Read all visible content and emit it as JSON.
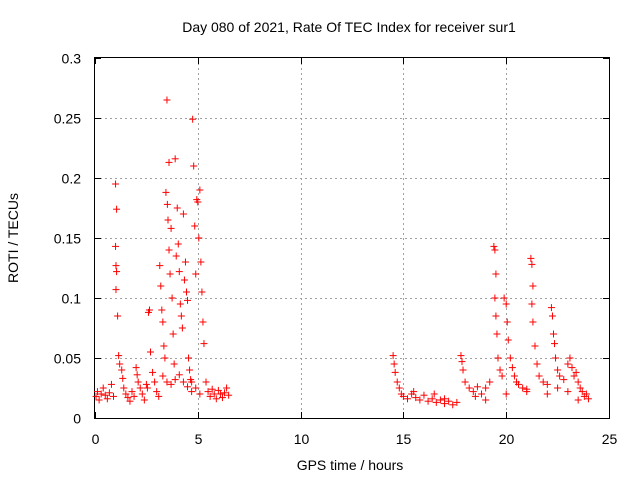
{
  "chart_data": {
    "type": "scatter",
    "title": "Day 080 of 2021, Rate Of TEC Index for receiver sur1",
    "xlabel": "GPS time / hours",
    "ylabel": "ROTI / TECUs",
    "xlim": [
      0,
      25
    ],
    "ylim": [
      0,
      0.3
    ],
    "x_ticks": [
      "0",
      "5",
      "10",
      "15",
      "20",
      "25"
    ],
    "y_ticks": [
      "0",
      "0.05",
      "0.1",
      "0.15",
      "0.2",
      "0.25",
      "0.3"
    ],
    "grid": true,
    "legend": "none",
    "marker": "+",
    "color": "#ff0000",
    "series": [
      {
        "points": [
          [
            0.05,
            0.018
          ],
          [
            0.12,
            0.022
          ],
          [
            0.2,
            0.015
          ],
          [
            0.3,
            0.02
          ],
          [
            0.4,
            0.025
          ],
          [
            0.5,
            0.019
          ],
          [
            0.6,
            0.016
          ],
          [
            0.7,
            0.021
          ],
          [
            0.8,
            0.028
          ],
          [
            0.9,
            0.018
          ],
          [
            1.0,
            0.195
          ],
          [
            1.05,
            0.174
          ],
          [
            1.0,
            0.143
          ],
          [
            1.02,
            0.127
          ],
          [
            1.05,
            0.122
          ],
          [
            1.02,
            0.107
          ],
          [
            1.1,
            0.085
          ],
          [
            1.15,
            0.052
          ],
          [
            1.2,
            0.045
          ],
          [
            1.3,
            0.04
          ],
          [
            1.35,
            0.033
          ],
          [
            1.4,
            0.025
          ],
          [
            1.5,
            0.02
          ],
          [
            1.6,
            0.017
          ],
          [
            1.7,
            0.014
          ],
          [
            1.8,
            0.022
          ],
          [
            1.9,
            0.018
          ],
          [
            2.0,
            0.042
          ],
          [
            2.05,
            0.036
          ],
          [
            2.1,
            0.03
          ],
          [
            2.2,
            0.025
          ],
          [
            2.3,
            0.02
          ],
          [
            2.4,
            0.015
          ],
          [
            2.5,
            0.028
          ],
          [
            2.55,
            0.025
          ],
          [
            2.6,
            0.088
          ],
          [
            2.65,
            0.09
          ],
          [
            2.7,
            0.055
          ],
          [
            2.8,
            0.038
          ],
          [
            2.9,
            0.03
          ],
          [
            3.0,
            0.022
          ],
          [
            3.1,
            0.018
          ],
          [
            3.15,
            0.127
          ],
          [
            3.2,
            0.11
          ],
          [
            3.25,
            0.09
          ],
          [
            3.3,
            0.08
          ],
          [
            3.35,
            0.06
          ],
          [
            3.4,
            0.05
          ],
          [
            3.45,
            0.188
          ],
          [
            3.5,
            0.265
          ],
          [
            3.52,
            0.178
          ],
          [
            3.55,
            0.165
          ],
          [
            3.6,
            0.213
          ],
          [
            3.6,
            0.14
          ],
          [
            3.65,
            0.12
          ],
          [
            3.7,
            0.158
          ],
          [
            3.75,
            0.1
          ],
          [
            3.8,
            0.07
          ],
          [
            3.85,
            0.045
          ],
          [
            3.9,
            0.216
          ],
          [
            3.95,
            0.135
          ],
          [
            4.0,
            0.175
          ],
          [
            4.05,
            0.145
          ],
          [
            4.1,
            0.122
          ],
          [
            4.15,
            0.095
          ],
          [
            4.2,
            0.085
          ],
          [
            4.25,
            0.075
          ],
          [
            4.3,
            0.17
          ],
          [
            4.35,
            0.115
          ],
          [
            4.4,
            0.13
          ],
          [
            4.45,
            0.105
          ],
          [
            4.5,
            0.098
          ],
          [
            4.55,
            0.05
          ],
          [
            4.6,
            0.04
          ],
          [
            4.65,
            0.032
          ],
          [
            4.7,
            0.03
          ],
          [
            4.75,
            0.249
          ],
          [
            4.8,
            0.21
          ],
          [
            4.85,
            0.16
          ],
          [
            4.9,
            0.12
          ],
          [
            4.95,
            0.182
          ],
          [
            5.0,
            0.18
          ],
          [
            5.05,
            0.15
          ],
          [
            5.1,
            0.19
          ],
          [
            5.15,
            0.13
          ],
          [
            5.2,
            0.105
          ],
          [
            5.25,
            0.08
          ],
          [
            5.3,
            0.062
          ],
          [
            5.4,
            0.03
          ],
          [
            5.5,
            0.022
          ],
          [
            5.6,
            0.018
          ],
          [
            5.7,
            0.024
          ],
          [
            5.8,
            0.02
          ],
          [
            5.9,
            0.016
          ],
          [
            6.0,
            0.023
          ],
          [
            6.1,
            0.02
          ],
          [
            6.2,
            0.017
          ],
          [
            6.3,
            0.021
          ],
          [
            6.4,
            0.025
          ],
          [
            6.5,
            0.019
          ],
          [
            3.3,
            0.035
          ],
          [
            3.5,
            0.03
          ],
          [
            3.7,
            0.028
          ],
          [
            3.9,
            0.032
          ],
          [
            4.1,
            0.036
          ],
          [
            4.3,
            0.03
          ],
          [
            4.5,
            0.026
          ],
          [
            4.7,
            0.022
          ],
          [
            4.9,
            0.025
          ],
          [
            5.1,
            0.02
          ],
          [
            14.5,
            0.052
          ],
          [
            14.55,
            0.045
          ],
          [
            14.6,
            0.038
          ],
          [
            14.7,
            0.03
          ],
          [
            14.8,
            0.025
          ],
          [
            14.9,
            0.02
          ],
          [
            15.0,
            0.018
          ],
          [
            15.2,
            0.016
          ],
          [
            15.4,
            0.02
          ],
          [
            15.6,
            0.017
          ],
          [
            15.8,
            0.015
          ],
          [
            16.0,
            0.019
          ],
          [
            16.2,
            0.014
          ],
          [
            16.4,
            0.016
          ],
          [
            16.6,
            0.013
          ],
          [
            16.8,
            0.015
          ],
          [
            17.0,
            0.012
          ],
          [
            17.2,
            0.014
          ],
          [
            17.4,
            0.011
          ],
          [
            17.6,
            0.013
          ],
          [
            17.8,
            0.052
          ],
          [
            17.85,
            0.047
          ],
          [
            17.9,
            0.04
          ],
          [
            18.0,
            0.03
          ],
          [
            18.2,
            0.025
          ],
          [
            18.4,
            0.022
          ],
          [
            18.6,
            0.026
          ],
          [
            18.8,
            0.02
          ],
          [
            19.0,
            0.025
          ],
          [
            19.2,
            0.03
          ],
          [
            19.4,
            0.143
          ],
          [
            19.45,
            0.14
          ],
          [
            19.5,
            0.12
          ],
          [
            19.45,
            0.1
          ],
          [
            19.5,
            0.085
          ],
          [
            19.55,
            0.07
          ],
          [
            19.6,
            0.05
          ],
          [
            19.7,
            0.04
          ],
          [
            19.8,
            0.035
          ],
          [
            19.9,
            0.1
          ],
          [
            20.0,
            0.095
          ],
          [
            20.05,
            0.08
          ],
          [
            20.1,
            0.065
          ],
          [
            20.2,
            0.05
          ],
          [
            20.3,
            0.042
          ],
          [
            20.4,
            0.035
          ],
          [
            20.5,
            0.03
          ],
          [
            20.6,
            0.028
          ],
          [
            20.8,
            0.025
          ],
          [
            21.0,
            0.022
          ],
          [
            21.2,
            0.133
          ],
          [
            21.25,
            0.128
          ],
          [
            21.3,
            0.11
          ],
          [
            21.25,
            0.095
          ],
          [
            21.3,
            0.08
          ],
          [
            21.4,
            0.06
          ],
          [
            21.5,
            0.045
          ],
          [
            21.6,
            0.035
          ],
          [
            21.8,
            0.03
          ],
          [
            22.0,
            0.028
          ],
          [
            22.2,
            0.092
          ],
          [
            22.25,
            0.085
          ],
          [
            22.3,
            0.07
          ],
          [
            22.35,
            0.062
          ],
          [
            22.4,
            0.05
          ],
          [
            22.5,
            0.04
          ],
          [
            22.6,
            0.035
          ],
          [
            22.8,
            0.032
          ],
          [
            23.0,
            0.045
          ],
          [
            23.1,
            0.05
          ],
          [
            23.2,
            0.042
          ],
          [
            23.3,
            0.035
          ],
          [
            23.4,
            0.038
          ],
          [
            23.5,
            0.03
          ],
          [
            23.6,
            0.025
          ],
          [
            23.7,
            0.022
          ],
          [
            23.8,
            0.018
          ],
          [
            23.9,
            0.02
          ],
          [
            24.0,
            0.016
          ],
          [
            23.5,
            0.015
          ],
          [
            18.5,
            0.018
          ],
          [
            19.0,
            0.015
          ],
          [
            20.0,
            0.02
          ],
          [
            21.0,
            0.024
          ],
          [
            22.0,
            0.02
          ],
          [
            22.5,
            0.025
          ],
          [
            23.0,
            0.022
          ],
          [
            16.5,
            0.02
          ],
          [
            17.0,
            0.016
          ],
          [
            15.5,
            0.022
          ]
        ]
      }
    ]
  }
}
